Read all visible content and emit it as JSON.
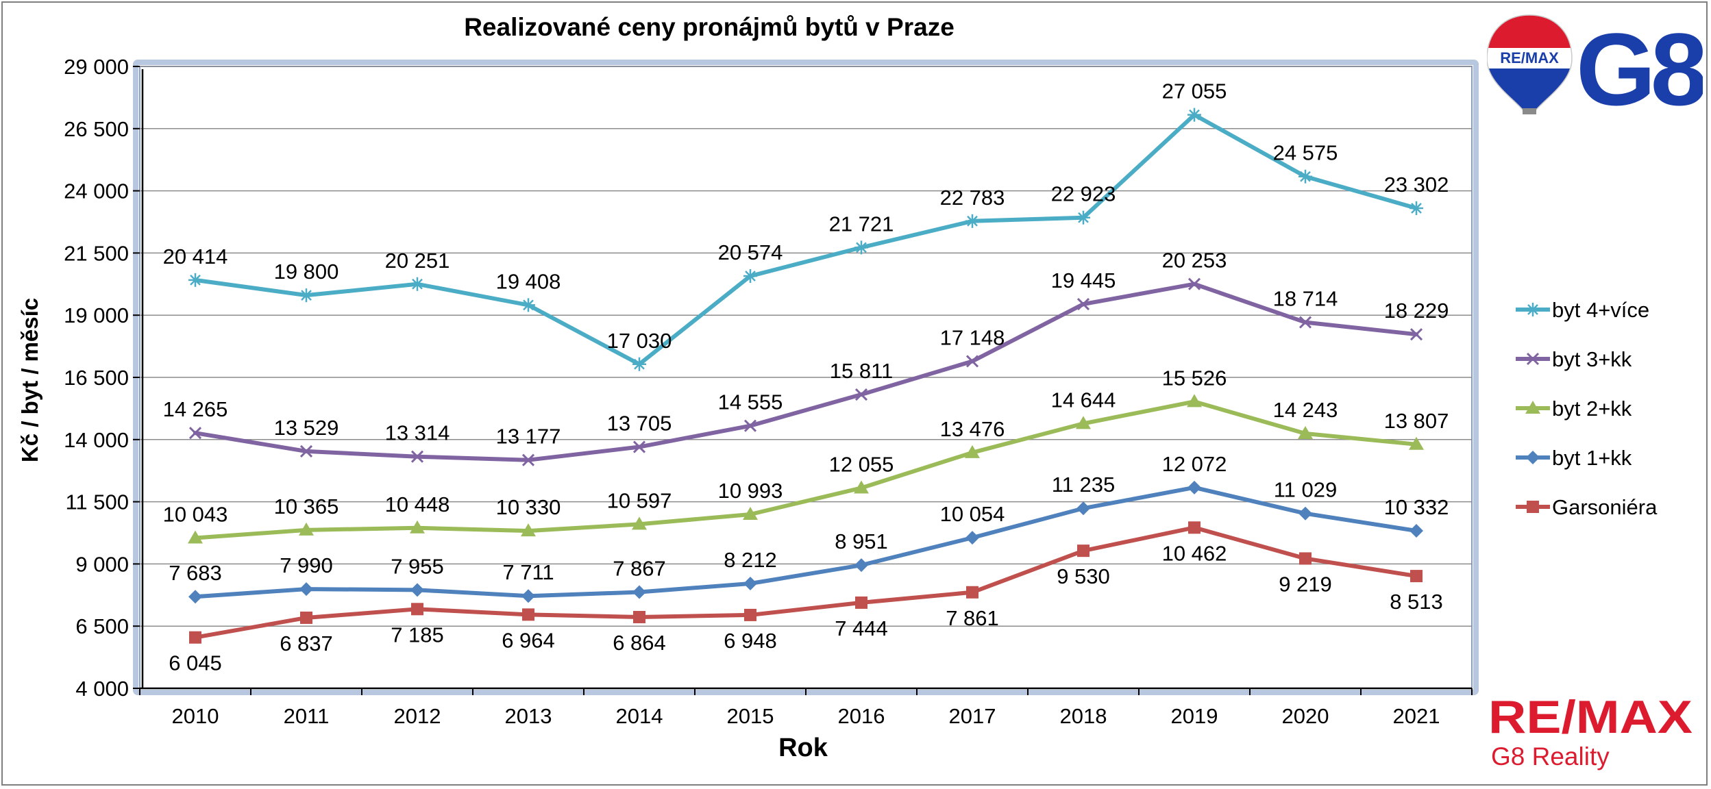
{
  "chart_data": {
    "type": "line",
    "title": "Realizované ceny pronájmů bytů v Praze",
    "xlabel": "Rok",
    "ylabel": "Kč / byt / měsíc",
    "categories": [
      "2010",
      "2011",
      "2012",
      "2013",
      "2014",
      "2015",
      "2016",
      "2017",
      "2018",
      "2019",
      "2020",
      "2021"
    ],
    "ylim": [
      4000,
      29000
    ],
    "yticks": [
      4000,
      6500,
      9000,
      11500,
      14000,
      16500,
      19000,
      21500,
      24000,
      26500,
      29000
    ],
    "ytick_labels": [
      "4 000",
      "6 500",
      "9 000",
      "11 500",
      "14 000",
      "16 500",
      "19 000",
      "21 500",
      "24 000",
      "26 500",
      "29 000"
    ],
    "grid": true,
    "legend_position": "right",
    "series": [
      {
        "name": "byt 4+více",
        "color": "#4bacc6",
        "marker": "star",
        "values": [
          20414,
          19800,
          20251,
          19408,
          17030,
          20574,
          21721,
          22783,
          22923,
          27055,
          24575,
          23302
        ],
        "labels": [
          "20 414",
          "19 800",
          "20 251",
          "19 408",
          "17 030",
          "20 574",
          "21 721",
          "22 783",
          "22 923",
          "27 055",
          "24 575",
          "23 302"
        ]
      },
      {
        "name": "byt 3+kk",
        "color": "#8064a2",
        "marker": "x",
        "values": [
          14265,
          13529,
          13314,
          13177,
          13705,
          14555,
          15811,
          17148,
          19445,
          20253,
          18714,
          18229
        ],
        "labels": [
          "14 265",
          "13 529",
          "13 314",
          "13 177",
          "13 705",
          "14 555",
          "15 811",
          "17 148",
          "19 445",
          "20 253",
          "18 714",
          "18 229"
        ]
      },
      {
        "name": "byt 2+kk",
        "color": "#9bbb59",
        "marker": "triangle",
        "values": [
          10043,
          10365,
          10448,
          10330,
          10597,
          10993,
          12055,
          13476,
          14644,
          15526,
          14243,
          13807
        ],
        "labels": [
          "10 043",
          "10 365",
          "10 448",
          "10 330",
          "10 597",
          "10 993",
          "12 055",
          "13 476",
          "14 644",
          "15 526",
          "14 243",
          "13 807"
        ]
      },
      {
        "name": "byt 1+kk",
        "color": "#4f81bd",
        "marker": "diamond",
        "values": [
          7683,
          7990,
          7955,
          7711,
          7867,
          8212,
          8951,
          10054,
          11235,
          12072,
          11029,
          10332
        ],
        "labels": [
          "7 683",
          "7 990",
          "7 955",
          "7 711",
          "7 867",
          "8 212",
          "8 951",
          "10 054",
          "11 235",
          "12 072",
          "11 029",
          "10 332"
        ]
      },
      {
        "name": "Garsoniéra",
        "color": "#c0504d",
        "marker": "square",
        "values": [
          6045,
          6837,
          7185,
          6964,
          6864,
          6948,
          7444,
          7861,
          9530,
          10462,
          9219,
          8513
        ],
        "labels": [
          "6 045",
          "6 837",
          "7 185",
          "6 964",
          "6 864",
          "6 948",
          "7 444",
          "7 861",
          "9 530",
          "10 462",
          "9 219",
          "8 513"
        ]
      }
    ]
  },
  "logos": {
    "top_balloon_text": "RE/MAX",
    "top_brand_text": "G8",
    "bottom_brand_text": "RE/MAX",
    "bottom_sub_text": "G8 Reality",
    "remax_blue": "#1a3faa",
    "remax_red": "#dc1c2e"
  }
}
